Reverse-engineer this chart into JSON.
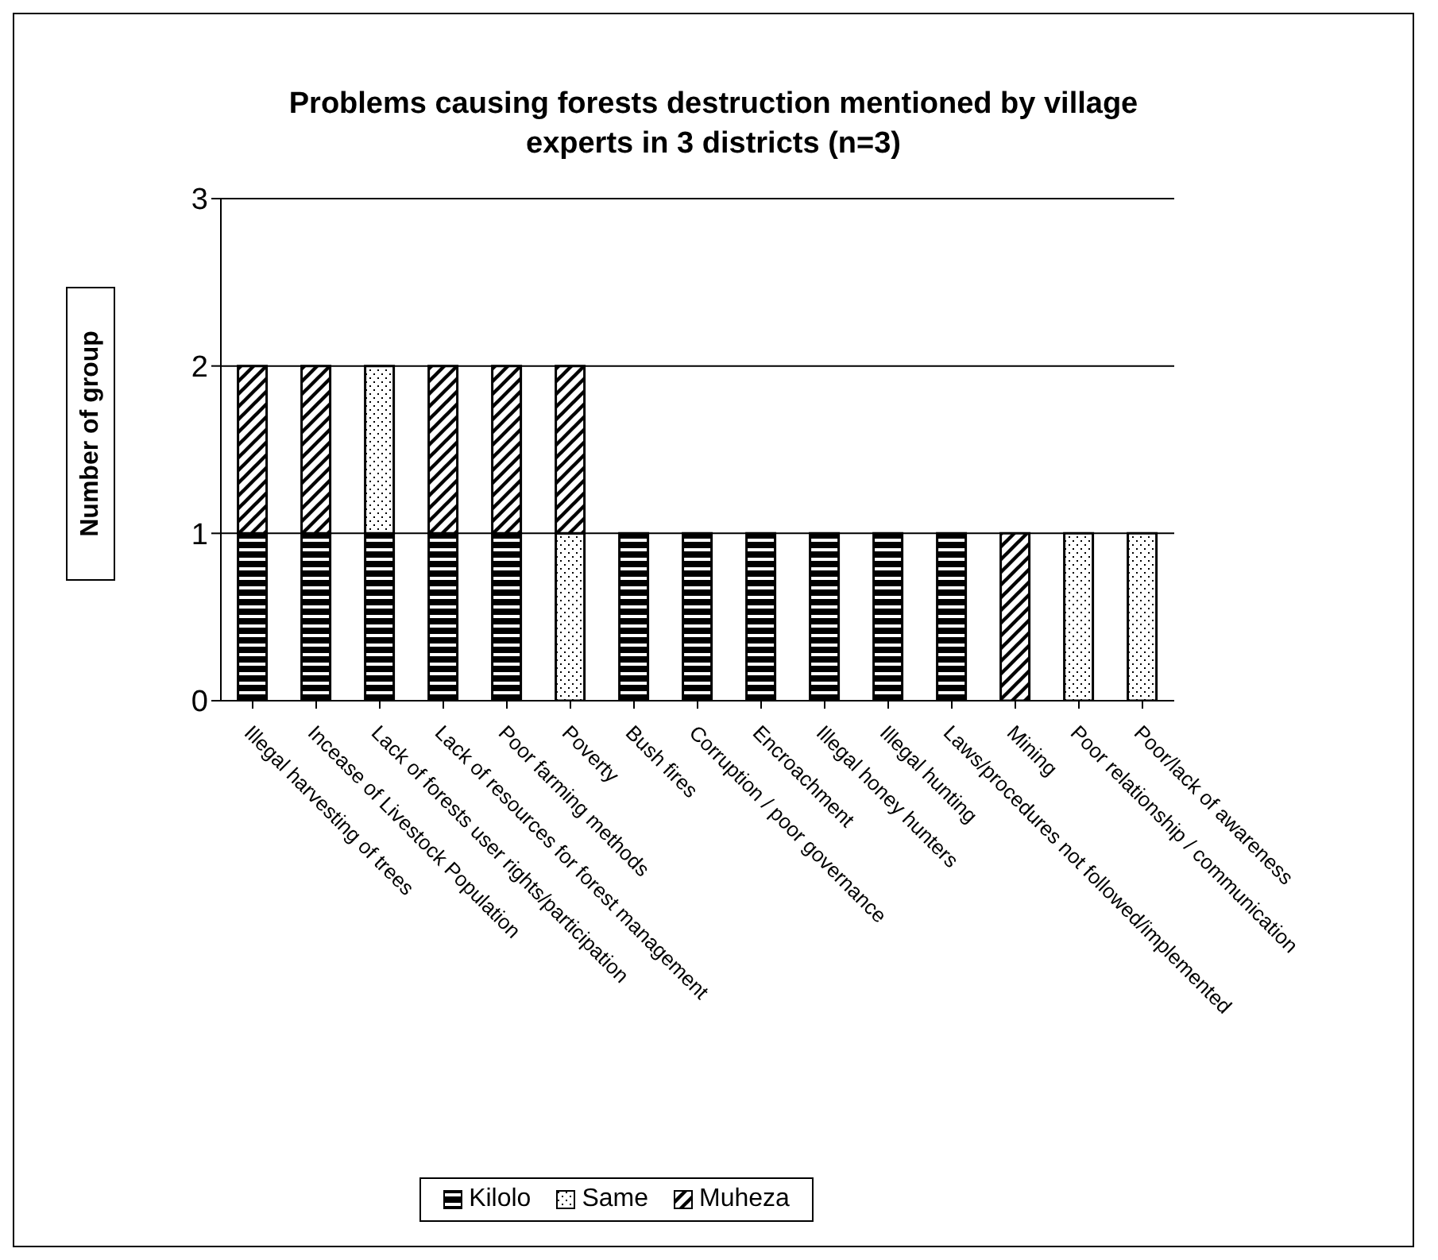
{
  "chart_data": {
    "type": "bar",
    "title": "Problems causing forests destruction mentioned  by village experts in 3 districts (n=3)",
    "ylabel": "Number of group",
    "categories": [
      "Illegal harvesting of trees",
      "Incease of Livestock Population",
      "Lack of forests user rights/participation",
      "Lack of resources for forest management",
      "Poor farming methods",
      "Poverty",
      "Bush fires",
      "Corruption / poor governance",
      "Encroachment",
      "Illegal honey hunters",
      "Illegal hunting",
      "Laws/procedures not followed/implemented",
      "Mining",
      "Poor relationship / communication",
      "Poor/lack of awareness"
    ],
    "series": [
      {
        "name": "Kilolo",
        "color": "#000000",
        "values": [
          1,
          1,
          1,
          1,
          1,
          0,
          1,
          1,
          1,
          1,
          1,
          1,
          0,
          0,
          0
        ]
      },
      {
        "name": "Same",
        "color": "#000000",
        "values": [
          0,
          0,
          1,
          0,
          0,
          1,
          0,
          0,
          0,
          0,
          0,
          0,
          0,
          1,
          1
        ]
      },
      {
        "name": "Muheza",
        "color": "#000000",
        "values": [
          1,
          1,
          0,
          1,
          1,
          1,
          0,
          0,
          0,
          0,
          0,
          0,
          1,
          0,
          0
        ]
      }
    ],
    "stacked": true,
    "ylim": [
      0,
      3
    ],
    "yticks": [
      0,
      1,
      2,
      3
    ],
    "grid": "y",
    "legend": "bottom"
  }
}
